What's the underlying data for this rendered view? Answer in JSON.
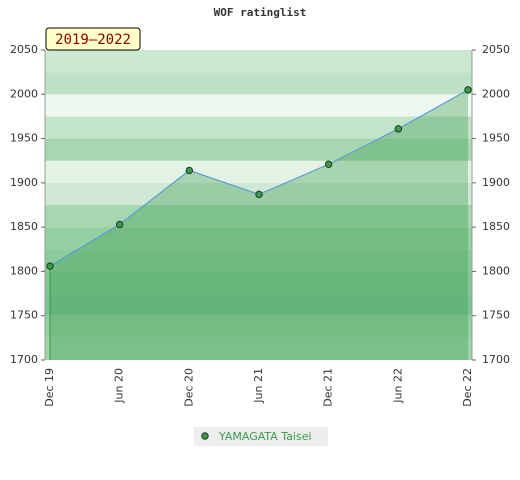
{
  "chart_data": {
    "type": "line",
    "title": "WOF ratinglist",
    "subtitle": "2019–2022",
    "categories": [
      "Dec 19",
      "Jun 20",
      "Dec 20",
      "Jun 21",
      "Dec 21",
      "Jun 22",
      "Dec 22"
    ],
    "series": [
      {
        "name": "YAMAGATA Taisei",
        "color": "#3a9a4a",
        "values": [
          1806,
          1853,
          1914,
          1887,
          1921,
          1961,
          2005
        ]
      }
    ],
    "ylim": [
      1700,
      2050
    ],
    "yticks": [
      1700,
      1750,
      1800,
      1850,
      1900,
      1950,
      2000,
      2050
    ],
    "grid": false,
    "legend": "bottom"
  }
}
